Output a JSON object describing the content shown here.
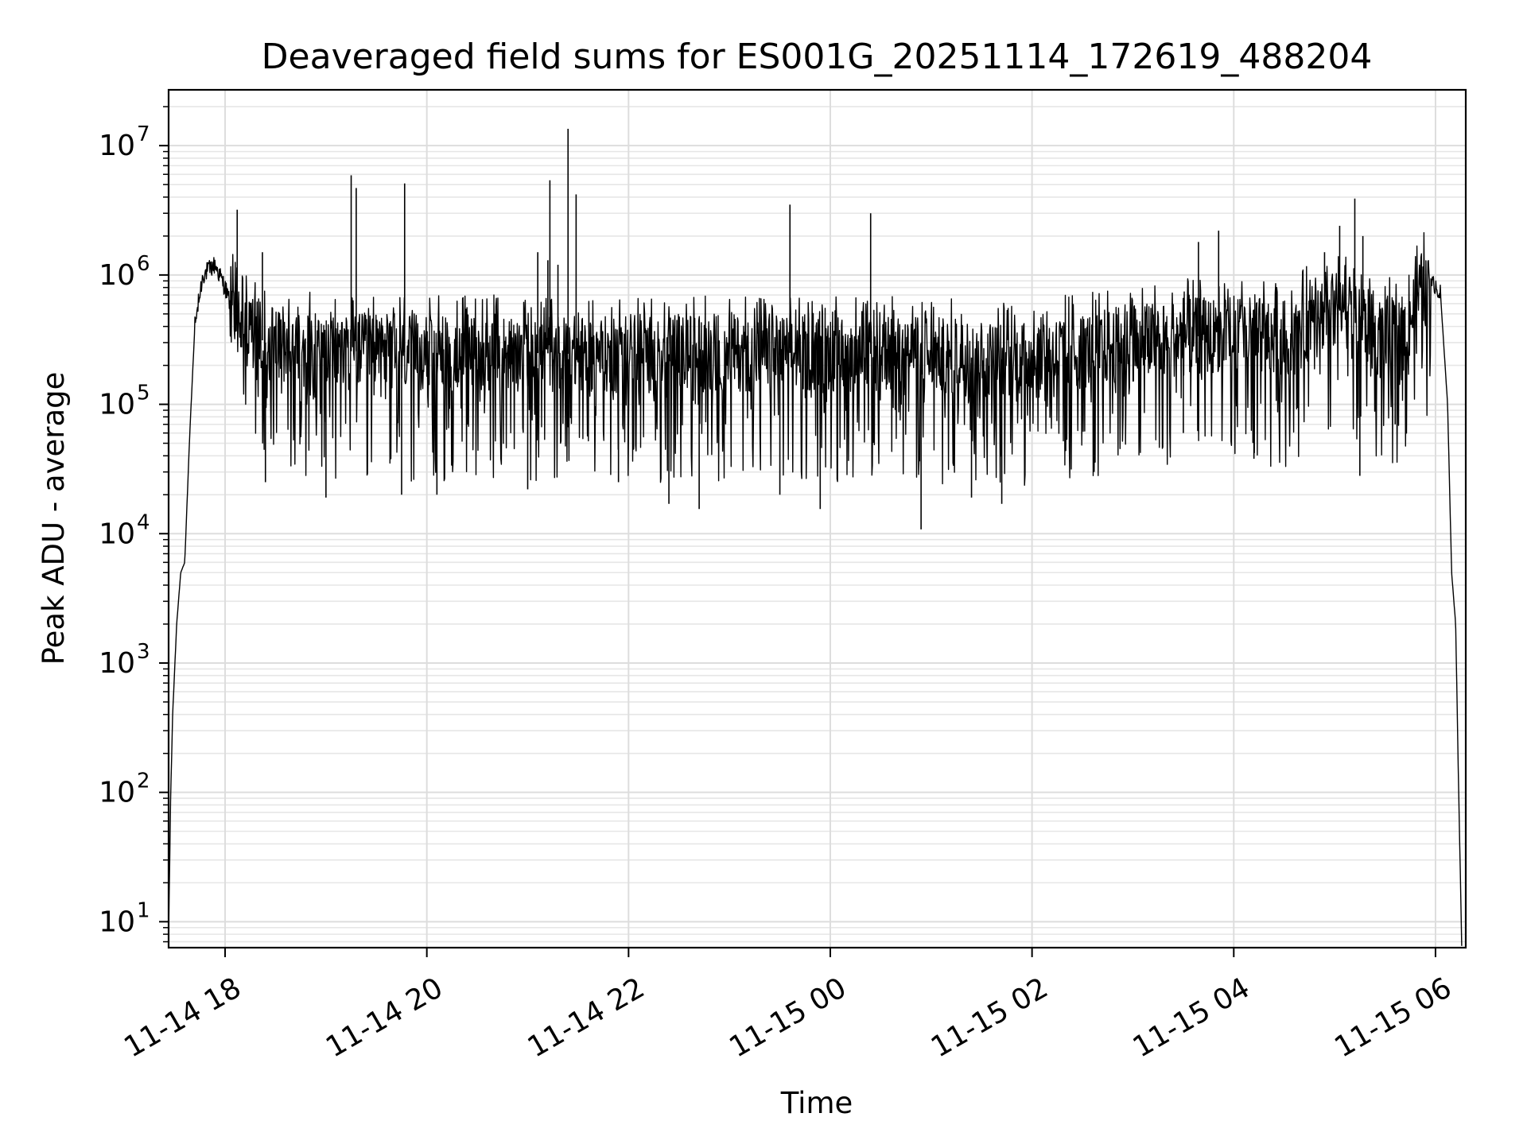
{
  "chart_data": {
    "type": "line",
    "title": "Deaveraged field sums for ES001G_20251114_172619_488204",
    "xlabel": "Time",
    "ylabel": "Peak ADU - average",
    "yscale": "log",
    "ylim": [
      6.3,
      27000000
    ],
    "xlim_hours": [
      17.44,
      30.3
    ],
    "grid": true,
    "x_ticks": [
      {
        "hour": 18,
        "label": "11-14 18"
      },
      {
        "hour": 20,
        "label": "11-14 20"
      },
      {
        "hour": 22,
        "label": "11-14 22"
      },
      {
        "hour": 24,
        "label": "11-15 00"
      },
      {
        "hour": 26,
        "label": "11-15 02"
      },
      {
        "hour": 28,
        "label": "11-15 04"
      },
      {
        "hour": 30,
        "label": "11-15 06"
      }
    ],
    "y_ticks": [
      {
        "value": 10,
        "base": "10",
        "exp": "1"
      },
      {
        "value": 100,
        "base": "10",
        "exp": "2"
      },
      {
        "value": 1000,
        "base": "10",
        "exp": "3"
      },
      {
        "value": 10000,
        "base": "10",
        "exp": "4"
      },
      {
        "value": 100000,
        "base": "10",
        "exp": "5"
      },
      {
        "value": 1000000,
        "base": "10",
        "exp": "6"
      },
      {
        "value": 10000000,
        "base": "10",
        "exp": "7"
      }
    ],
    "series": [
      {
        "name": "deaveraged field sum",
        "color": "#000000",
        "description_points": "approximate envelope; hour offset from 11-14 00:00, value in ADU",
        "baseline": [
          [
            17.44,
            8
          ],
          [
            17.46,
            90
          ],
          [
            17.48,
            400
          ],
          [
            17.52,
            2000
          ],
          [
            17.56,
            5000
          ],
          [
            17.6,
            6000
          ],
          [
            17.65,
            60000
          ],
          [
            17.7,
            400000
          ],
          [
            17.78,
            1000000
          ],
          [
            17.9,
            1200000
          ],
          [
            18.0,
            800000
          ],
          [
            18.1,
            450000
          ],
          [
            18.4,
            300000
          ],
          [
            19.0,
            260000
          ],
          [
            20.0,
            250000
          ],
          [
            21.0,
            250000
          ],
          [
            22.0,
            240000
          ],
          [
            23.0,
            250000
          ],
          [
            24.0,
            250000
          ],
          [
            25.0,
            240000
          ],
          [
            25.8,
            220000
          ],
          [
            26.5,
            260000
          ],
          [
            27.0,
            300000
          ],
          [
            27.5,
            330000
          ],
          [
            28.0,
            350000
          ],
          [
            28.6,
            320000
          ],
          [
            28.8,
            500000
          ],
          [
            29.2,
            550000
          ],
          [
            29.4,
            330000
          ],
          [
            29.7,
            350000
          ],
          [
            29.85,
            750000
          ],
          [
            30.0,
            850000
          ],
          [
            30.05,
            700000
          ],
          [
            30.12,
            100000
          ],
          [
            30.16,
            5000
          ],
          [
            30.2,
            2000
          ],
          [
            30.23,
            100
          ],
          [
            30.26,
            6.5
          ]
        ],
        "spikes": [
          [
            18.12,
            3200000
          ],
          [
            18.37,
            1500000
          ],
          [
            19.25,
            5900000
          ],
          [
            19.3,
            4700000
          ],
          [
            19.78,
            5100000
          ],
          [
            21.2,
            1300000
          ],
          [
            21.3,
            1200000
          ],
          [
            21.22,
            5400000
          ],
          [
            21.4,
            13500000
          ],
          [
            21.48,
            4200000
          ],
          [
            21.1,
            1500000
          ],
          [
            23.6,
            3500000
          ],
          [
            24.4,
            3000000
          ],
          [
            27.65,
            1800000
          ],
          [
            27.85,
            2200000
          ],
          [
            28.9,
            1500000
          ],
          [
            29.05,
            2400000
          ],
          [
            29.2,
            3900000
          ],
          [
            29.28,
            2000000
          ]
        ],
        "dips": [
          [
            18.4,
            25000
          ],
          [
            19.0,
            19000
          ],
          [
            19.75,
            20000
          ],
          [
            20.1,
            20000
          ],
          [
            21.0,
            22000
          ],
          [
            21.9,
            25000
          ],
          [
            22.4,
            17000
          ],
          [
            22.7,
            15500
          ],
          [
            23.5,
            20000
          ],
          [
            23.9,
            15500
          ],
          [
            24.9,
            10800
          ],
          [
            25.4,
            19000
          ],
          [
            25.7,
            17000
          ],
          [
            27.5,
            60000
          ],
          [
            28.2,
            38000
          ],
          [
            29.25,
            28000
          ],
          [
            29.6,
            70000
          ]
        ]
      }
    ]
  }
}
